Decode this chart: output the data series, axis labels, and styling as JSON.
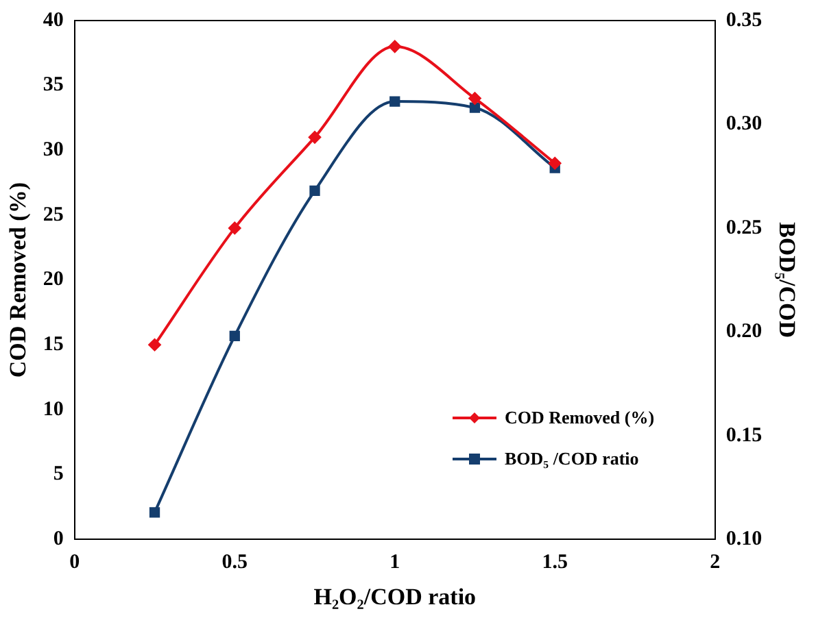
{
  "chart_data": {
    "type": "line",
    "xlabel": "H₂O₂/COD ratio",
    "ylabel": "COD Removed (%)",
    "y2label": "BOD₅/COD",
    "x": [
      0.25,
      0.5,
      0.75,
      1,
      1.25,
      1.5
    ],
    "series": [
      {
        "name": "COD Removed (%)",
        "color": "#e8101a",
        "marker": "diamond",
        "values": [
          15,
          24,
          31,
          38,
          34,
          29
        ]
      },
      {
        "name": "BOD₅ /COD ratio",
        "color": "#153e6e",
        "marker": "square",
        "axis": "y2",
        "values": [
          0.113,
          0.198,
          0.268,
          0.311,
          0.308,
          0.279
        ]
      }
    ],
    "xlim": [
      0,
      2
    ],
    "xticks": [
      0,
      0.5,
      1,
      1.5,
      2
    ],
    "ylim": [
      0,
      40
    ],
    "yticks": [
      0,
      5,
      10,
      15,
      20,
      25,
      30,
      35,
      40
    ],
    "y2lim": [
      0.1,
      0.35
    ],
    "y2ticks": [
      {
        "value": 0.1,
        "label": "0.10"
      },
      {
        "value": 0.15,
        "label": "0.15"
      },
      {
        "value": 0.2,
        "label": "0.20"
      },
      {
        "value": 0.25,
        "label": "0.25"
      },
      {
        "value": 0.3,
        "label": "0.30"
      },
      {
        "value": 0.35,
        "label": "0.35"
      }
    ],
    "grid": false,
    "legend": "bottom right"
  }
}
